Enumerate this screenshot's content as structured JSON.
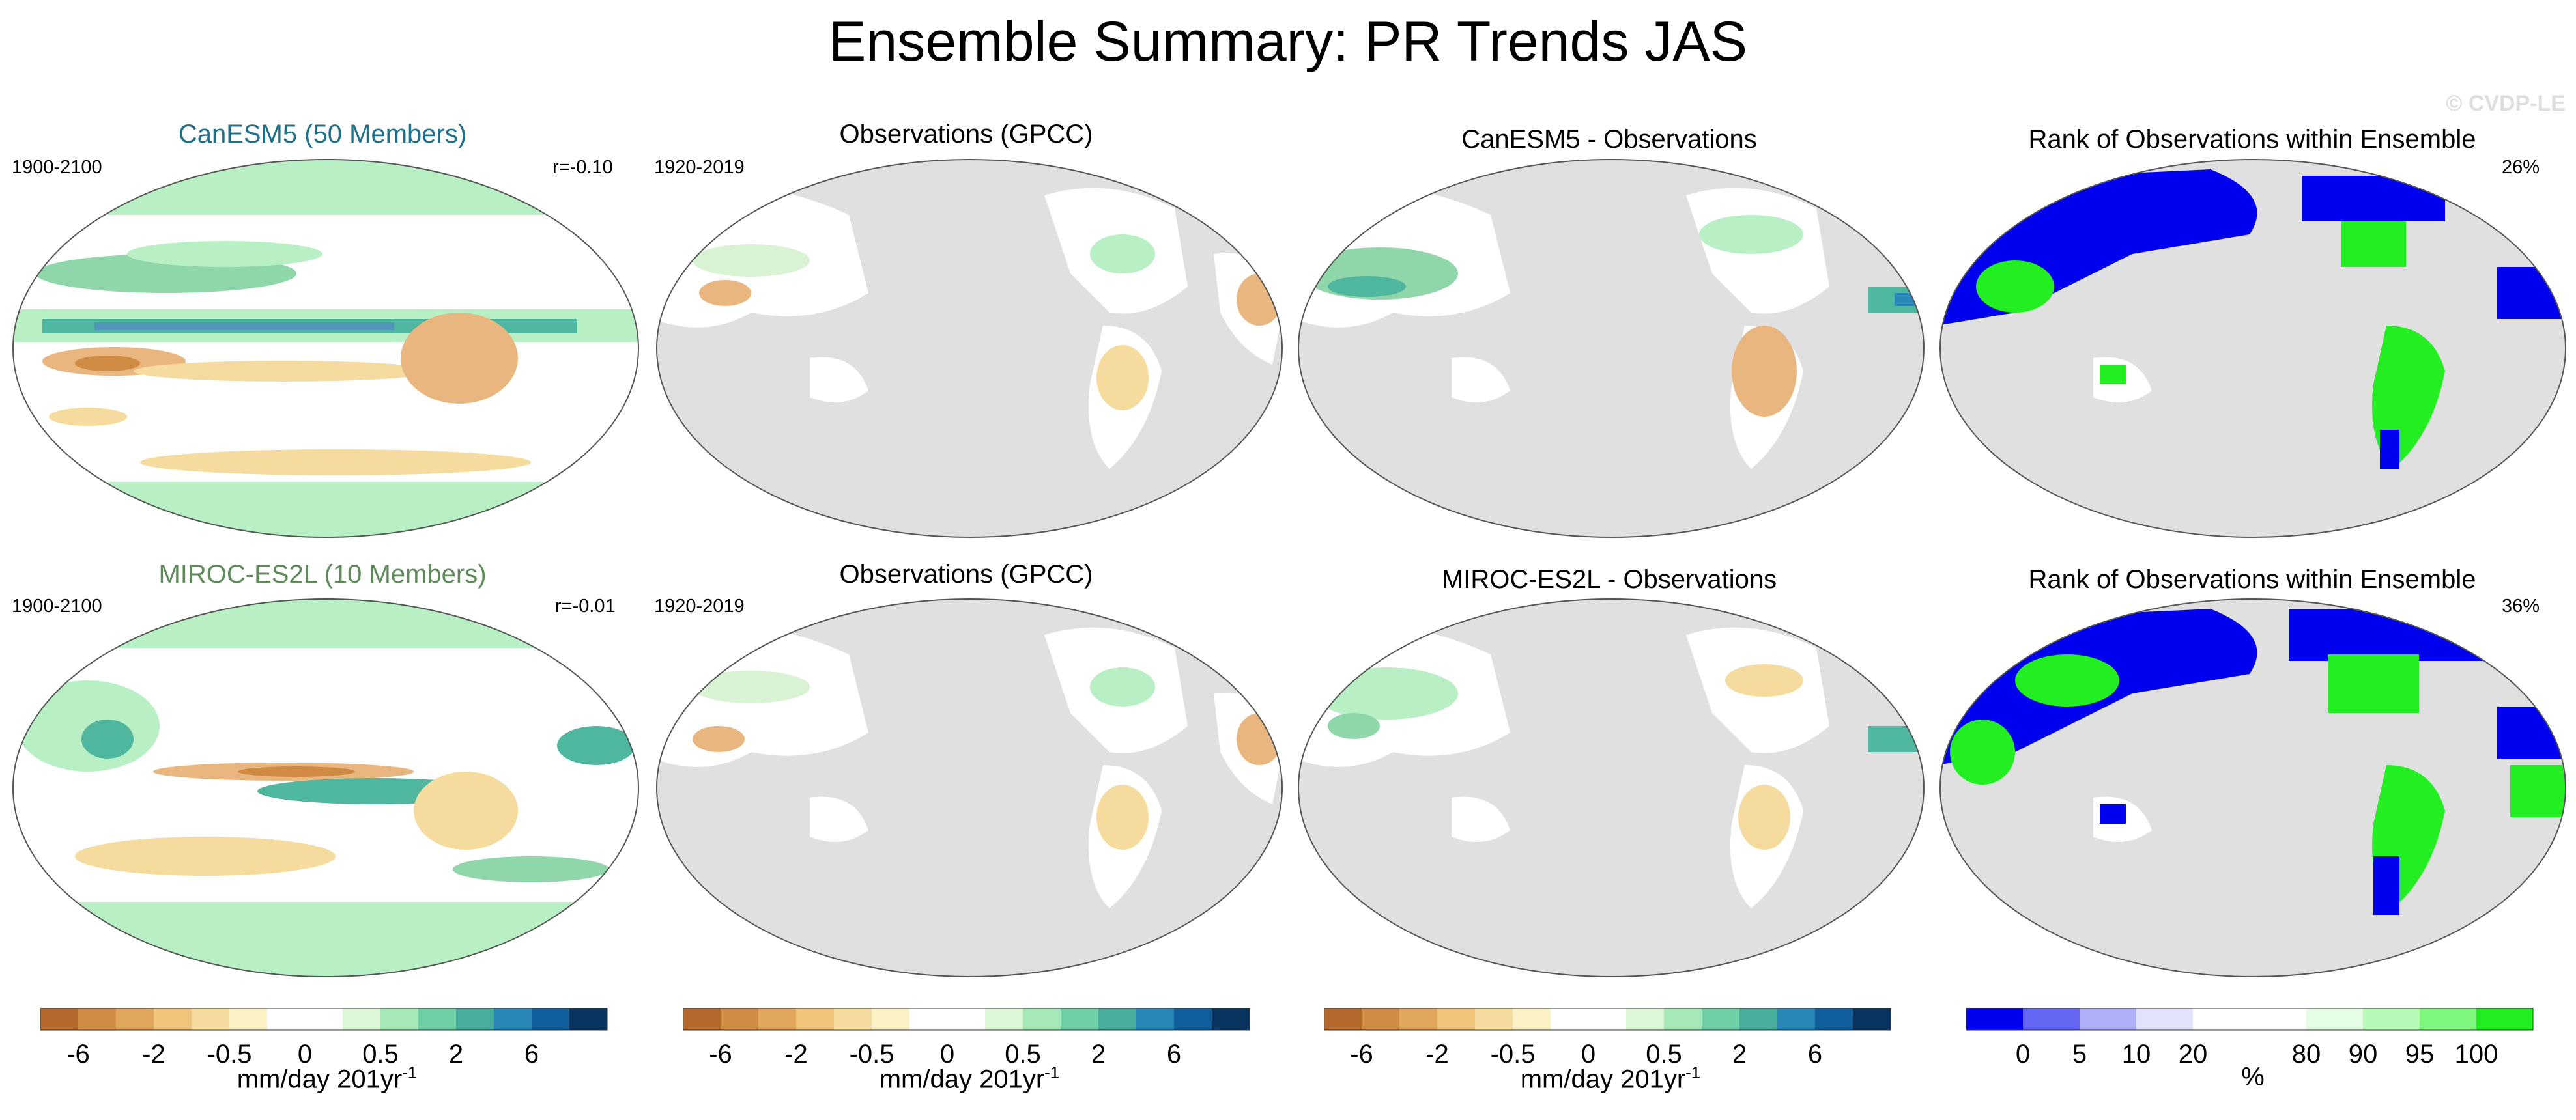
{
  "title": "Ensemble Summary: PR Trends JAS",
  "watermark": "© CVDP-LE",
  "rows": [
    {
      "model_title": "CanESM5 (50 Members)",
      "model_years": "1900-2100",
      "model_r": "r=-0.10",
      "obs_title": "Observations (GPCC)",
      "obs_years": "1920-2019",
      "diff_title": "CanESM5 - Observations",
      "rank_title": "Rank of Observations within Ensemble",
      "rank_pct": "26%"
    },
    {
      "model_title": "MIROC-ES2L (10 Members)",
      "model_years": "1900-2100",
      "model_r": "r=-0.01",
      "obs_title": "Observations (GPCC)",
      "obs_years": "1920-2019",
      "diff_title": "MIROC-ES2L - Observations",
      "rank_title": "Rank of Observations within Ensemble",
      "rank_pct": "36%"
    }
  ],
  "colorbars": {
    "trend": {
      "colors": [
        "#b5682c",
        "#cf8a44",
        "#e0a65e",
        "#efc47b",
        "#f5dc9e",
        "#fbf1c5",
        "#ffffff",
        "#ffffff",
        "#ddf6d8",
        "#a6e8b7",
        "#6fd0a6",
        "#48ad9b",
        "#2b86b8",
        "#105f9c",
        "#0a3560"
      ],
      "tick_labels": [
        "-6",
        "-2",
        "-0.5",
        "0",
        "0.5",
        "2",
        "6"
      ],
      "unit": "mm/day 201yr",
      "unit_sup": "-1"
    },
    "rank": {
      "colors": [
        "#0000ee",
        "#6666f5",
        "#b0b0fa",
        "#e2e2fc",
        "#ffffff",
        "#ffffff",
        "#e4fde4",
        "#b8f9b8",
        "#7ff77f",
        "#22ee22"
      ],
      "tick_labels": [
        "0",
        "5",
        "10",
        "20",
        "80",
        "90",
        "95",
        "100"
      ],
      "unit": "%"
    }
  },
  "colors": {
    "ocean": "#e0e0e0",
    "land_green": "#b9efc5",
    "teal": "#4fb6a0",
    "brown": "#e9b680",
    "rank_blue": "#0000ee",
    "rank_green": "#22ee22"
  }
}
